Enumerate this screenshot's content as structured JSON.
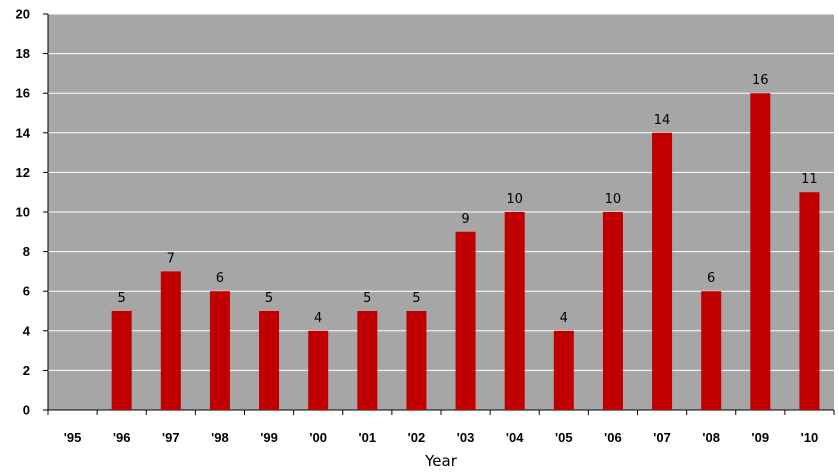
{
  "chart_data": {
    "type": "bar",
    "title": "",
    "xlabel": "Year",
    "ylabel": "",
    "ylim": [
      0,
      20
    ],
    "yticks": [
      0,
      2,
      4,
      6,
      8,
      10,
      12,
      14,
      16,
      18,
      20
    ],
    "grid": true,
    "legend": "none",
    "categories": [
      "'95",
      "'96",
      "'97",
      "'98",
      "'99",
      "'00",
      "'01",
      "'02",
      "'03",
      "'04",
      "'05",
      "'06",
      "'07",
      "'08",
      "'09",
      "'10"
    ],
    "values": [
      null,
      5,
      7,
      6,
      5,
      4,
      5,
      5,
      9,
      10,
      4,
      10,
      14,
      6,
      16,
      11
    ],
    "colors": {
      "bar": "#c00000",
      "plot_background": "#a6a6a6",
      "gridline": "#ffffff"
    }
  }
}
